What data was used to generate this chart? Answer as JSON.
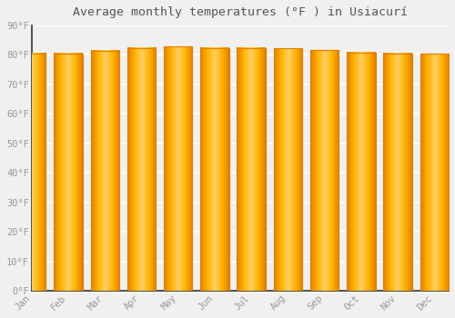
{
  "title": "Average monthly temperatures (°F ) in Usiacurí",
  "months": [
    "Jan",
    "Feb",
    "Mar",
    "Apr",
    "May",
    "Jun",
    "Jul",
    "Aug",
    "Sep",
    "Oct",
    "Nov",
    "Dec"
  ],
  "values": [
    80.6,
    80.6,
    81.5,
    82.4,
    82.9,
    82.4,
    82.4,
    82.2,
    81.7,
    80.8,
    80.6,
    80.4
  ],
  "bar_color_main": "#FFB300",
  "bar_color_light": "#FFD966",
  "bar_color_edge": "#E08000",
  "background_color": "#F0F0F0",
  "grid_color": "#FFFFFF",
  "text_color": "#999999",
  "title_color": "#555555",
  "ylim": [
    0,
    90
  ],
  "yticks": [
    0,
    10,
    20,
    30,
    40,
    50,
    60,
    70,
    80,
    90
  ],
  "ytick_labels": [
    "0°F",
    "10°F",
    "20°F",
    "30°F",
    "40°F",
    "50°F",
    "60°F",
    "70°F",
    "80°F",
    "90°F"
  ]
}
